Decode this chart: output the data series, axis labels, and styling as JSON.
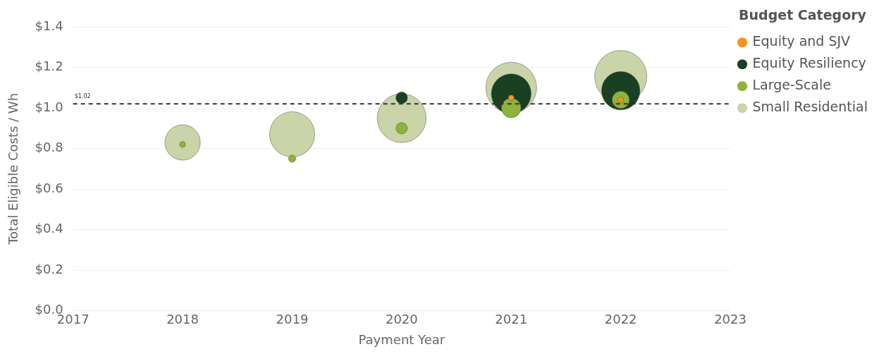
{
  "chart_data": {
    "type": "bubble",
    "xlabel": "Payment Year",
    "ylabel": "Total Eligible Costs / Wh",
    "legend_title": "Budget Category",
    "x": [
      2018,
      2019,
      2020,
      2021,
      2022
    ],
    "series": [
      {
        "name": "Equity and SJV",
        "color": "#f7931e",
        "values": [
          null,
          null,
          null,
          1.05,
          1.04
        ],
        "sizes": [
          null,
          null,
          null,
          0.012,
          0.012
        ]
      },
      {
        "name": "Equity Resiliency",
        "color": "#1b3f22",
        "values": [
          null,
          null,
          1.05,
          1.07,
          1.085
        ],
        "sizes": [
          null,
          null,
          0.05,
          0.58,
          0.54
        ]
      },
      {
        "name": "Large-Scale",
        "color": "#8db33a",
        "values": [
          0.82,
          0.75,
          0.9,
          1.0,
          1.04
        ],
        "sizes": [
          0.012,
          0.019,
          0.048,
          0.14,
          0.11
        ]
      },
      {
        "name": "Small Residential",
        "color": "#c9d4a9",
        "values": [
          0.83,
          0.87,
          0.95,
          1.1,
          1.155
        ],
        "sizes": [
          0.46,
          0.75,
          0.88,
          0.95,
          1
        ]
      }
    ],
    "xlim": [
      2017,
      2023
    ],
    "xticks": [
      2017,
      2018,
      2019,
      2020,
      2021,
      2022,
      2023
    ],
    "ylim": [
      0,
      1.4
    ],
    "yticks": [
      {
        "value": 0,
        "label": "$0.0"
      },
      {
        "value": 0.2,
        "label": "$0.2"
      },
      {
        "value": 0.4,
        "label": "$0.4"
      },
      {
        "value": 0.6,
        "label": "$0.6"
      },
      {
        "value": 0.8,
        "label": "$0.8"
      },
      {
        "value": 1.0,
        "label": "$1.0"
      },
      {
        "value": 1.2,
        "label": "$1.2"
      },
      {
        "value": 1.4,
        "label": "$1.4"
      }
    ],
    "ref_lines": [
      {
        "axis": "y",
        "value": 1.02,
        "label": "$1.02",
        "color": "#333333",
        "line_style": "dashed"
      }
    ],
    "grid": "y",
    "legend": "top right"
  }
}
